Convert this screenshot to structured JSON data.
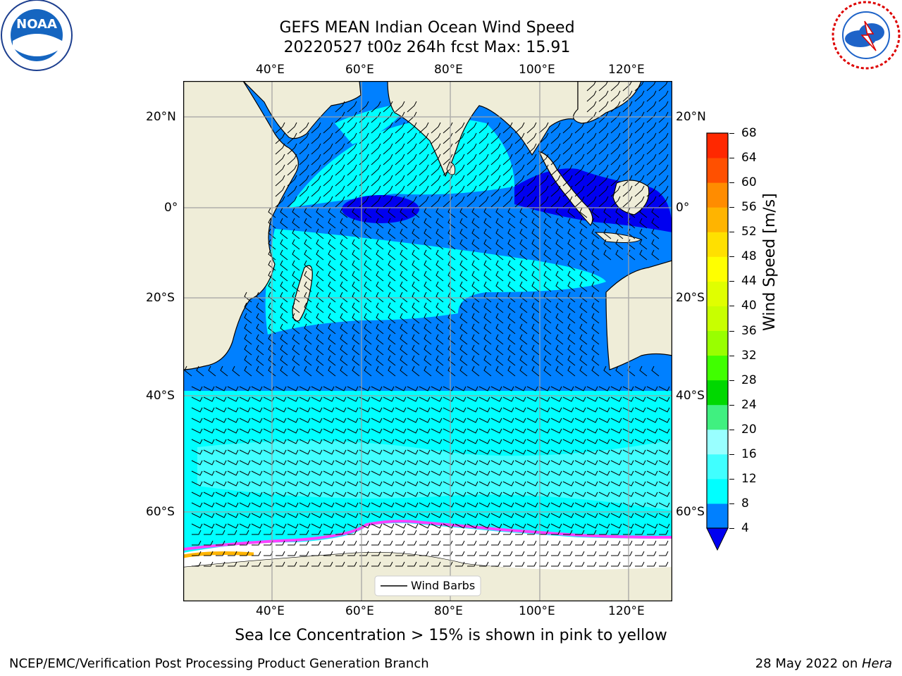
{
  "header": {
    "title_line1": "GEFS MEAN Indian Ocean Wind Speed",
    "title_line2": "20220527 t00z 264h fcst   Max: 15.91"
  },
  "logos": {
    "left": {
      "name": "noaa-logo",
      "text": "NOAA",
      "ring_text": "NATIONAL OCEANIC AND ATMOSPHERIC ADMINISTRATION · U.S. DEPARTMENT OF COMMERCE"
    },
    "right": {
      "name": "nws-logo",
      "ring_text": "NATIONAL WEATHER SERVICE"
    }
  },
  "map": {
    "lon_ticks": [
      "40°E",
      "60°E",
      "80°E",
      "100°E",
      "120°E"
    ],
    "lat_ticks": [
      "20°N",
      "0°",
      "20°S",
      "40°S",
      "60°S"
    ],
    "legend_label": "Wind Barbs",
    "colors": {
      "land": "#efedd8",
      "ocean_4_8": "#0080ff",
      "ocean_8_12": "#00ffff",
      "ocean_12_16": "#40ffff",
      "ocean_lt_4": "#0000f0",
      "ice": "#ffffff",
      "ice_edge": "#ff40ff"
    }
  },
  "colorbar": {
    "label": "Wind Speed [m/s]",
    "ticks": [
      "4",
      "8",
      "12",
      "16",
      "20",
      "24",
      "28",
      "32",
      "36",
      "40",
      "44",
      "48",
      "52",
      "56",
      "60",
      "64",
      "68"
    ],
    "colors": [
      "#0080ff",
      "#00ffff",
      "#40ffff",
      "#99ffff",
      "#40f080",
      "#00d800",
      "#40ff00",
      "#99ff00",
      "#c8ff00",
      "#e0ff00",
      "#ffff00",
      "#ffe000",
      "#ffb400",
      "#ff8c00",
      "#ff5000",
      "#ff2800"
    ],
    "under_color": "#0000f0"
  },
  "notes": {
    "sea_ice": "Sea Ice Concentration > 15% is shown in pink to yellow"
  },
  "footer": {
    "left": "NCEP/EMC/Verification Post Processing Product Generation Branch",
    "right_prefix": "28 May 2022 on ",
    "right_machine": "Hera"
  }
}
